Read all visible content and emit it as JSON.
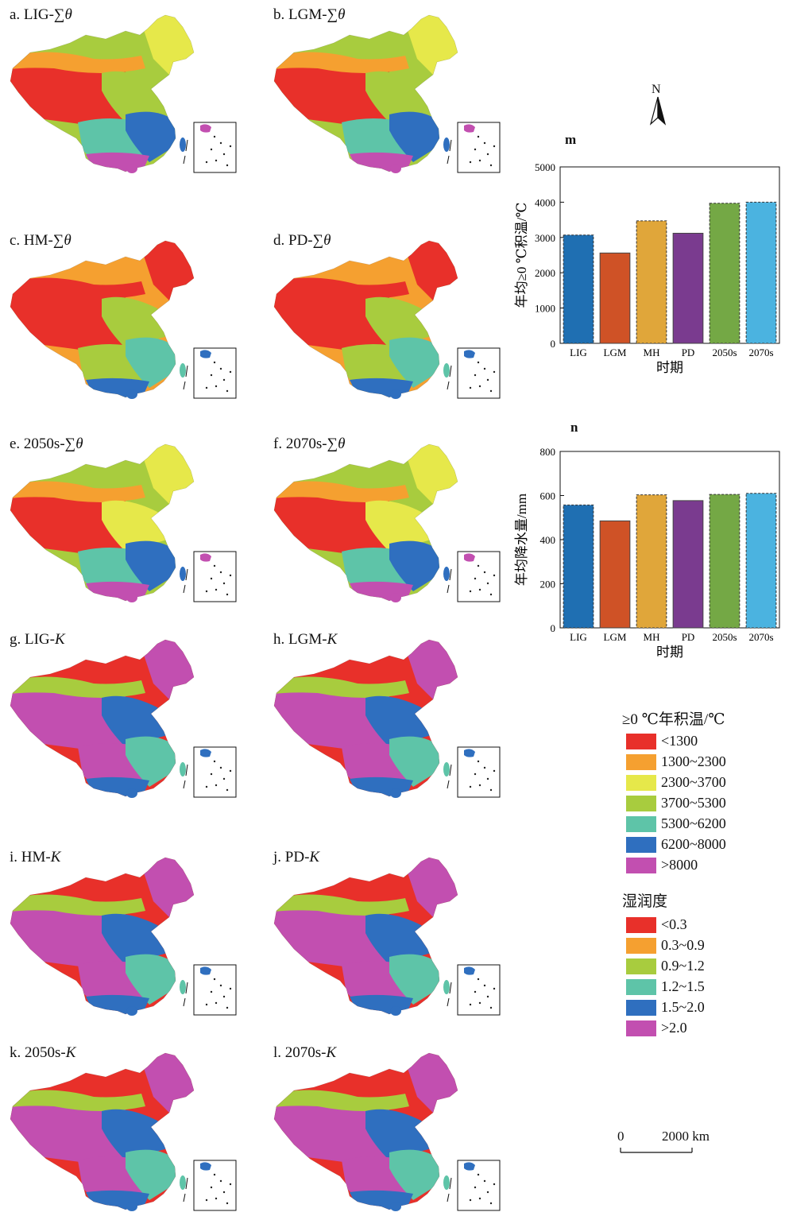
{
  "map_panels": [
    {
      "id": "a",
      "prefix": "a. LIG-",
      "sym": "∑θ",
      "italic_sym": false
    },
    {
      "id": "b",
      "prefix": "b. LGM-",
      "sym": "∑θ",
      "italic_sym": false
    },
    {
      "id": "c",
      "prefix": "c. HM-",
      "sym": "∑θ",
      "italic_sym": false
    },
    {
      "id": "d",
      "prefix": "d. PD-",
      "sym": "∑θ",
      "italic_sym": false
    },
    {
      "id": "e",
      "prefix": "e. 2050s-",
      "sym": "∑θ",
      "italic_sym": false
    },
    {
      "id": "f",
      "prefix": "f. 2070s-",
      "sym": "∑θ",
      "italic_sym": false
    },
    {
      "id": "g",
      "prefix": "g. LIG-",
      "sym": "K",
      "italic_sym": true
    },
    {
      "id": "h",
      "prefix": "h. LGM-",
      "sym": "K",
      "italic_sym": true
    },
    {
      "id": "i",
      "prefix": "i. HM-",
      "sym": "K",
      "italic_sym": true
    },
    {
      "id": "j",
      "prefix": "j. PD-",
      "sym": "K",
      "italic_sym": true
    },
    {
      "id": "k",
      "prefix": "k. 2050s-",
      "sym": "K",
      "italic_sym": true
    },
    {
      "id": "l",
      "prefix": "l. 2070s-",
      "sym": "K",
      "italic_sym": true
    }
  ],
  "north_arrow": {
    "label": "N"
  },
  "chart_data": [
    {
      "id": "m",
      "type": "bar",
      "panel_label": "m",
      "categories": [
        "LIG",
        "LGM",
        "MH",
        "PD",
        "2050s",
        "2070s"
      ],
      "values": [
        3070,
        2560,
        3470,
        3120,
        3970,
        4000
      ],
      "colors": [
        "#1f6fb2",
        "#cf5226",
        "#e0a63a",
        "#7a3b8f",
        "#74a845",
        "#4bb3e0"
      ],
      "dashed": [
        true,
        false,
        true,
        false,
        true,
        true
      ],
      "xlabel": "时期",
      "ylabel": "年均≥0 ℃积温/℃",
      "ylim": [
        0,
        5000
      ],
      "yticks": [
        0,
        1000,
        2000,
        3000,
        4000,
        5000
      ]
    },
    {
      "id": "n",
      "type": "bar",
      "panel_label": "n",
      "categories": [
        "LIG",
        "LGM",
        "MH",
        "PD",
        "2050s",
        "2070s"
      ],
      "values": [
        557,
        485,
        603,
        577,
        605,
        610
      ],
      "colors": [
        "#1f6fb2",
        "#cf5226",
        "#e0a63a",
        "#7a3b8f",
        "#74a845",
        "#4bb3e0"
      ],
      "dashed": [
        true,
        false,
        true,
        false,
        true,
        true
      ],
      "xlabel": "时期",
      "ylabel": "年均降水量/mm",
      "ylim": [
        0,
        800
      ],
      "yticks": [
        0,
        200,
        400,
        600,
        800
      ]
    }
  ],
  "legend_temp": {
    "title": "≥0 ℃年积温/℃",
    "items": [
      {
        "label": "<1300",
        "color": "#e8302a"
      },
      {
        "label": "1300~2300",
        "color": "#f5a030"
      },
      {
        "label": "2300~3700",
        "color": "#e6e84a"
      },
      {
        "label": "3700~5300",
        "color": "#a8cc3e"
      },
      {
        "label": "5300~6200",
        "color": "#5ec4a8"
      },
      {
        "label": "6200~8000",
        "color": "#2f6fbf"
      },
      {
        "label": ">8000",
        "color": "#c24fb0"
      }
    ]
  },
  "legend_moist": {
    "title": "湿润度",
    "items": [
      {
        "label": "<0.3",
        "color": "#e8302a"
      },
      {
        "label": "0.3~0.9",
        "color": "#f5a030"
      },
      {
        "label": "0.9~1.2",
        "color": "#a8cc3e"
      },
      {
        "label": "1.2~1.5",
        "color": "#5ec4a8"
      },
      {
        "label": "1.5~2.0",
        "color": "#2f6fbf"
      },
      {
        "label": ">2.0",
        "color": "#c24fb0"
      }
    ]
  },
  "scale_bar": {
    "start": "0",
    "end": "2000 km"
  }
}
